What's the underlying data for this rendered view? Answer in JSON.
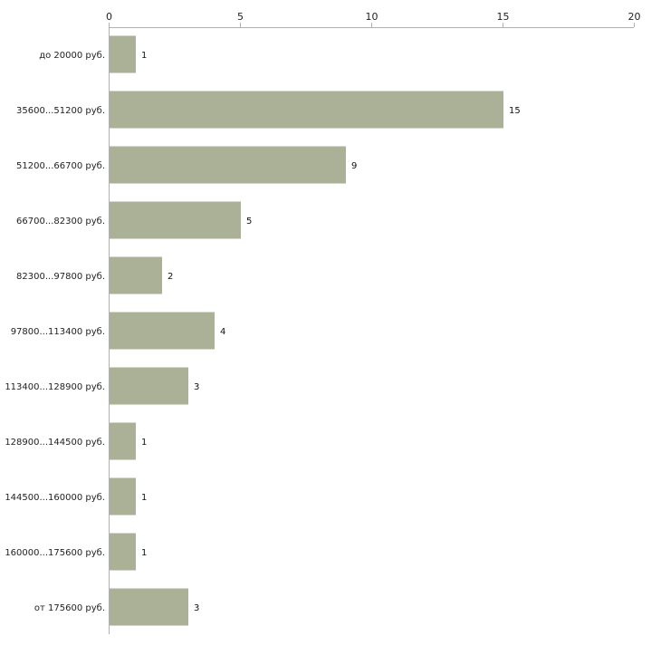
{
  "chart_data": {
    "type": "bar",
    "orientation": "horizontal",
    "title": "",
    "xlabel": "",
    "ylabel": "",
    "xlim": [
      0,
      20
    ],
    "x_ticks": [
      0,
      5,
      10,
      15,
      20
    ],
    "grid": false,
    "bar_color": "#aab197",
    "axis_color": "#b0b0b0",
    "categories": [
      "до 20000 руб.",
      "35600...51200 руб.",
      "51200...66700 руб.",
      "66700...82300 руб.",
      "82300...97800 руб.",
      "97800...113400 руб.",
      "113400...128900 руб.",
      "128900...144500 руб.",
      "144500...160000 руб.",
      "160000...175600 руб.",
      "от 175600 руб."
    ],
    "values": [
      1,
      15,
      9,
      5,
      2,
      4,
      3,
      1,
      1,
      1,
      3
    ]
  }
}
